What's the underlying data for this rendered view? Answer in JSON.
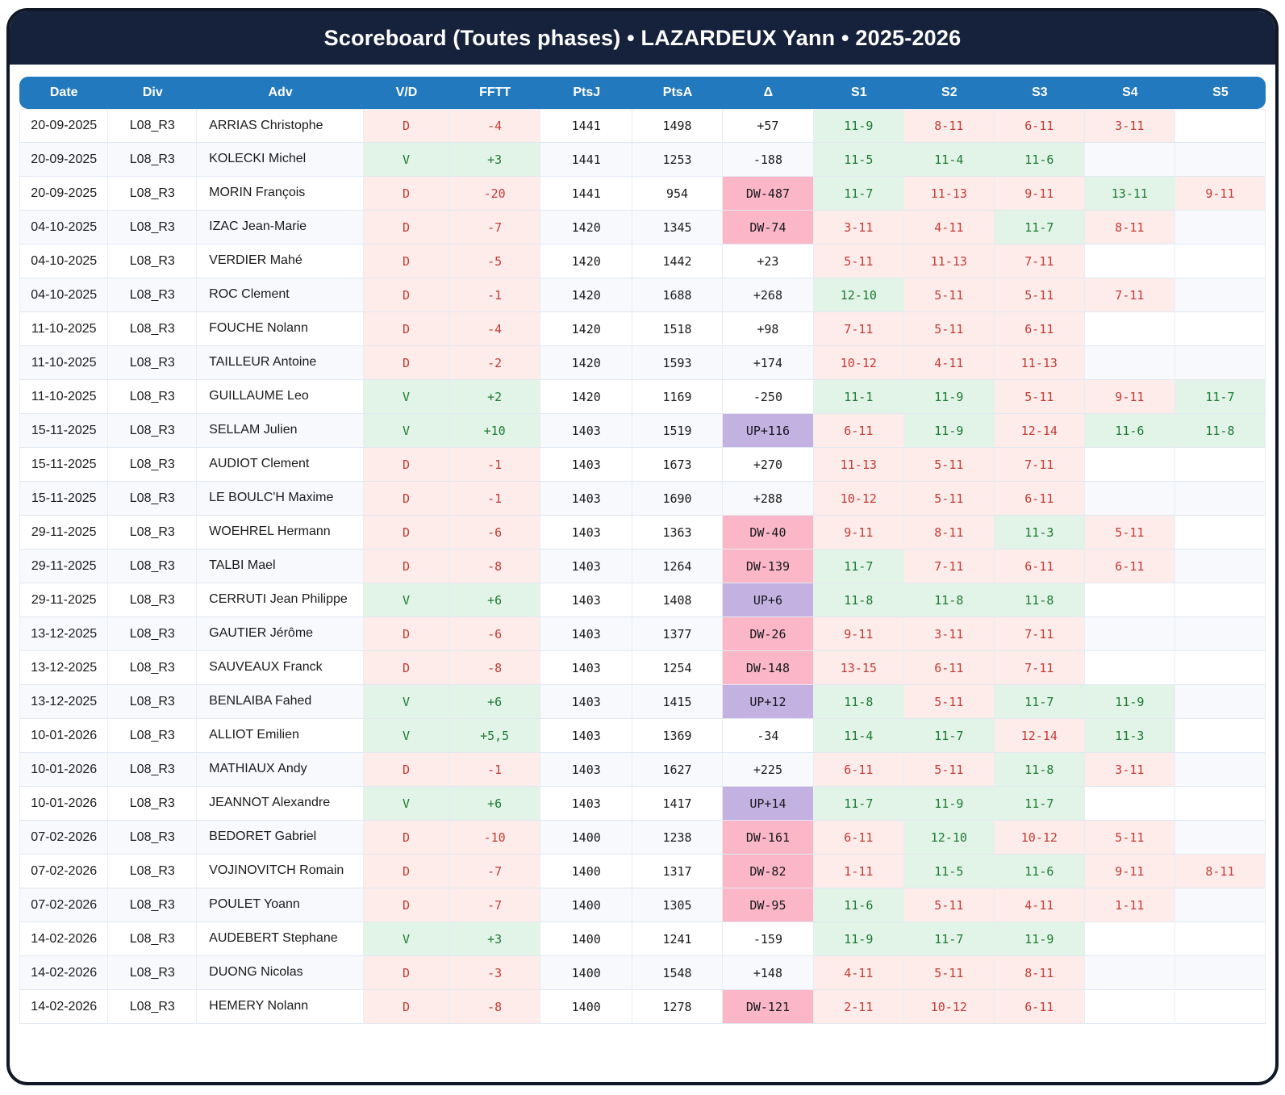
{
  "title": "Scoreboard (Toutes phases) • LAZARDEUX Yann • 2025-2026",
  "columns": [
    "Date",
    "Div",
    "Adv",
    "V/D",
    "FFTT",
    "PtsJ",
    "PtsA",
    "Δ",
    "S1",
    "S2",
    "S3",
    "S4",
    "S5"
  ],
  "colors": {
    "title_bar_navy": "#16213c",
    "header_blue": "#2379bd",
    "win_bg": "#e2f3e7",
    "win_text": "#1e7b34",
    "loss_bg": "#fdecea",
    "loss_text": "#c43c35",
    "delta_down_pink": "#fbb7c8",
    "delta_up_purple": "#c3b1e1",
    "alt_row_bg": "#f7f9fc"
  },
  "rows": [
    {
      "date": "20-09-2025",
      "div": "L08_R3",
      "adv": "ARRIAS Christophe",
      "vd": "D",
      "fftt": "-4",
      "ptsj": "1441",
      "ptsa": "1498",
      "delta": "+57",
      "sets": [
        "11-9",
        "8-11",
        "6-11",
        "3-11",
        ""
      ]
    },
    {
      "date": "20-09-2025",
      "div": "L08_R3",
      "adv": "KOLECKI Michel",
      "vd": "V",
      "fftt": "+3",
      "ptsj": "1441",
      "ptsa": "1253",
      "delta": "-188",
      "sets": [
        "11-5",
        "11-4",
        "11-6",
        "",
        ""
      ]
    },
    {
      "date": "20-09-2025",
      "div": "L08_R3",
      "adv": "MORIN François",
      "vd": "D",
      "fftt": "-20",
      "ptsj": "1441",
      "ptsa": "954",
      "delta": "DW-487",
      "sets": [
        "11-7",
        "11-13",
        "9-11",
        "13-11",
        "9-11"
      ]
    },
    {
      "date": "04-10-2025",
      "div": "L08_R3",
      "adv": "IZAC Jean-Marie",
      "vd": "D",
      "fftt": "-7",
      "ptsj": "1420",
      "ptsa": "1345",
      "delta": "DW-74",
      "sets": [
        "3-11",
        "4-11",
        "11-7",
        "8-11",
        ""
      ]
    },
    {
      "date": "04-10-2025",
      "div": "L08_R3",
      "adv": "VERDIER Mahé",
      "vd": "D",
      "fftt": "-5",
      "ptsj": "1420",
      "ptsa": "1442",
      "delta": "+23",
      "sets": [
        "5-11",
        "11-13",
        "7-11",
        "",
        ""
      ]
    },
    {
      "date": "04-10-2025",
      "div": "L08_R3",
      "adv": "ROC Clement",
      "vd": "D",
      "fftt": "-1",
      "ptsj": "1420",
      "ptsa": "1688",
      "delta": "+268",
      "sets": [
        "12-10",
        "5-11",
        "5-11",
        "7-11",
        ""
      ]
    },
    {
      "date": "11-10-2025",
      "div": "L08_R3",
      "adv": "FOUCHE Nolann",
      "vd": "D",
      "fftt": "-4",
      "ptsj": "1420",
      "ptsa": "1518",
      "delta": "+98",
      "sets": [
        "7-11",
        "5-11",
        "6-11",
        "",
        ""
      ]
    },
    {
      "date": "11-10-2025",
      "div": "L08_R3",
      "adv": "TAILLEUR Antoine",
      "vd": "D",
      "fftt": "-2",
      "ptsj": "1420",
      "ptsa": "1593",
      "delta": "+174",
      "sets": [
        "10-12",
        "4-11",
        "11-13",
        "",
        ""
      ]
    },
    {
      "date": "11-10-2025",
      "div": "L08_R3",
      "adv": "GUILLAUME Leo",
      "vd": "V",
      "fftt": "+2",
      "ptsj": "1420",
      "ptsa": "1169",
      "delta": "-250",
      "sets": [
        "11-1",
        "11-9",
        "5-11",
        "9-11",
        "11-7"
      ]
    },
    {
      "date": "15-11-2025",
      "div": "L08_R3",
      "adv": "SELLAM Julien",
      "vd": "V",
      "fftt": "+10",
      "ptsj": "1403",
      "ptsa": "1519",
      "delta": "UP+116",
      "sets": [
        "6-11",
        "11-9",
        "12-14",
        "11-6",
        "11-8"
      ]
    },
    {
      "date": "15-11-2025",
      "div": "L08_R3",
      "adv": "AUDIOT Clement",
      "vd": "D",
      "fftt": "-1",
      "ptsj": "1403",
      "ptsa": "1673",
      "delta": "+270",
      "sets": [
        "11-13",
        "5-11",
        "7-11",
        "",
        ""
      ]
    },
    {
      "date": "15-11-2025",
      "div": "L08_R3",
      "adv": "LE BOULC'H Maxime",
      "vd": "D",
      "fftt": "-1",
      "ptsj": "1403",
      "ptsa": "1690",
      "delta": "+288",
      "sets": [
        "10-12",
        "5-11",
        "6-11",
        "",
        ""
      ]
    },
    {
      "date": "29-11-2025",
      "div": "L08_R3",
      "adv": "WOEHREL Hermann",
      "vd": "D",
      "fftt": "-6",
      "ptsj": "1403",
      "ptsa": "1363",
      "delta": "DW-40",
      "sets": [
        "9-11",
        "8-11",
        "11-3",
        "5-11",
        ""
      ]
    },
    {
      "date": "29-11-2025",
      "div": "L08_R3",
      "adv": "TALBI Mael",
      "vd": "D",
      "fftt": "-8",
      "ptsj": "1403",
      "ptsa": "1264",
      "delta": "DW-139",
      "sets": [
        "11-7",
        "7-11",
        "6-11",
        "6-11",
        ""
      ]
    },
    {
      "date": "29-11-2025",
      "div": "L08_R3",
      "adv": "CERRUTI Jean Philippe",
      "vd": "V",
      "fftt": "+6",
      "ptsj": "1403",
      "ptsa": "1408",
      "delta": "UP+6",
      "sets": [
        "11-8",
        "11-8",
        "11-8",
        "",
        ""
      ]
    },
    {
      "date": "13-12-2025",
      "div": "L08_R3",
      "adv": "GAUTIER Jérôme",
      "vd": "D",
      "fftt": "-6",
      "ptsj": "1403",
      "ptsa": "1377",
      "delta": "DW-26",
      "sets": [
        "9-11",
        "3-11",
        "7-11",
        "",
        ""
      ]
    },
    {
      "date": "13-12-2025",
      "div": "L08_R3",
      "adv": "SAUVEAUX Franck",
      "vd": "D",
      "fftt": "-8",
      "ptsj": "1403",
      "ptsa": "1254",
      "delta": "DW-148",
      "sets": [
        "13-15",
        "6-11",
        "7-11",
        "",
        ""
      ]
    },
    {
      "date": "13-12-2025",
      "div": "L08_R3",
      "adv": "BENLAIBA Fahed",
      "vd": "V",
      "fftt": "+6",
      "ptsj": "1403",
      "ptsa": "1415",
      "delta": "UP+12",
      "sets": [
        "11-8",
        "5-11",
        "11-7",
        "11-9",
        ""
      ]
    },
    {
      "date": "10-01-2026",
      "div": "L08_R3",
      "adv": "ALLIOT Emilien",
      "vd": "V",
      "fftt": "+5,5",
      "ptsj": "1403",
      "ptsa": "1369",
      "delta": "-34",
      "sets": [
        "11-4",
        "11-7",
        "12-14",
        "11-3",
        ""
      ]
    },
    {
      "date": "10-01-2026",
      "div": "L08_R3",
      "adv": "MATHIAUX Andy",
      "vd": "D",
      "fftt": "-1",
      "ptsj": "1403",
      "ptsa": "1627",
      "delta": "+225",
      "sets": [
        "6-11",
        "5-11",
        "11-8",
        "3-11",
        ""
      ]
    },
    {
      "date": "10-01-2026",
      "div": "L08_R3",
      "adv": "JEANNOT Alexandre",
      "vd": "V",
      "fftt": "+6",
      "ptsj": "1403",
      "ptsa": "1417",
      "delta": "UP+14",
      "sets": [
        "11-7",
        "11-9",
        "11-7",
        "",
        ""
      ]
    },
    {
      "date": "07-02-2026",
      "div": "L08_R3",
      "adv": "BEDORET Gabriel",
      "vd": "D",
      "fftt": "-10",
      "ptsj": "1400",
      "ptsa": "1238",
      "delta": "DW-161",
      "sets": [
        "6-11",
        "12-10",
        "10-12",
        "5-11",
        ""
      ]
    },
    {
      "date": "07-02-2026",
      "div": "L08_R3",
      "adv": "VOJINOVITCH Romain",
      "vd": "D",
      "fftt": "-7",
      "ptsj": "1400",
      "ptsa": "1317",
      "delta": "DW-82",
      "sets": [
        "1-11",
        "11-5",
        "11-6",
        "9-11",
        "8-11"
      ]
    },
    {
      "date": "07-02-2026",
      "div": "L08_R3",
      "adv": "POULET Yoann",
      "vd": "D",
      "fftt": "-7",
      "ptsj": "1400",
      "ptsa": "1305",
      "delta": "DW-95",
      "sets": [
        "11-6",
        "5-11",
        "4-11",
        "1-11",
        ""
      ]
    },
    {
      "date": "14-02-2026",
      "div": "L08_R3",
      "adv": "AUDEBERT Stephane",
      "vd": "V",
      "fftt": "+3",
      "ptsj": "1400",
      "ptsa": "1241",
      "delta": "-159",
      "sets": [
        "11-9",
        "11-7",
        "11-9",
        "",
        ""
      ]
    },
    {
      "date": "14-02-2026",
      "div": "L08_R3",
      "adv": "DUONG Nicolas",
      "vd": "D",
      "fftt": "-3",
      "ptsj": "1400",
      "ptsa": "1548",
      "delta": "+148",
      "sets": [
        "4-11",
        "5-11",
        "8-11",
        "",
        ""
      ]
    },
    {
      "date": "14-02-2026",
      "div": "L08_R3",
      "adv": "HEMERY Nolann",
      "vd": "D",
      "fftt": "-8",
      "ptsj": "1400",
      "ptsa": "1278",
      "delta": "DW-121",
      "sets": [
        "2-11",
        "10-12",
        "6-11",
        "",
        ""
      ]
    }
  ]
}
